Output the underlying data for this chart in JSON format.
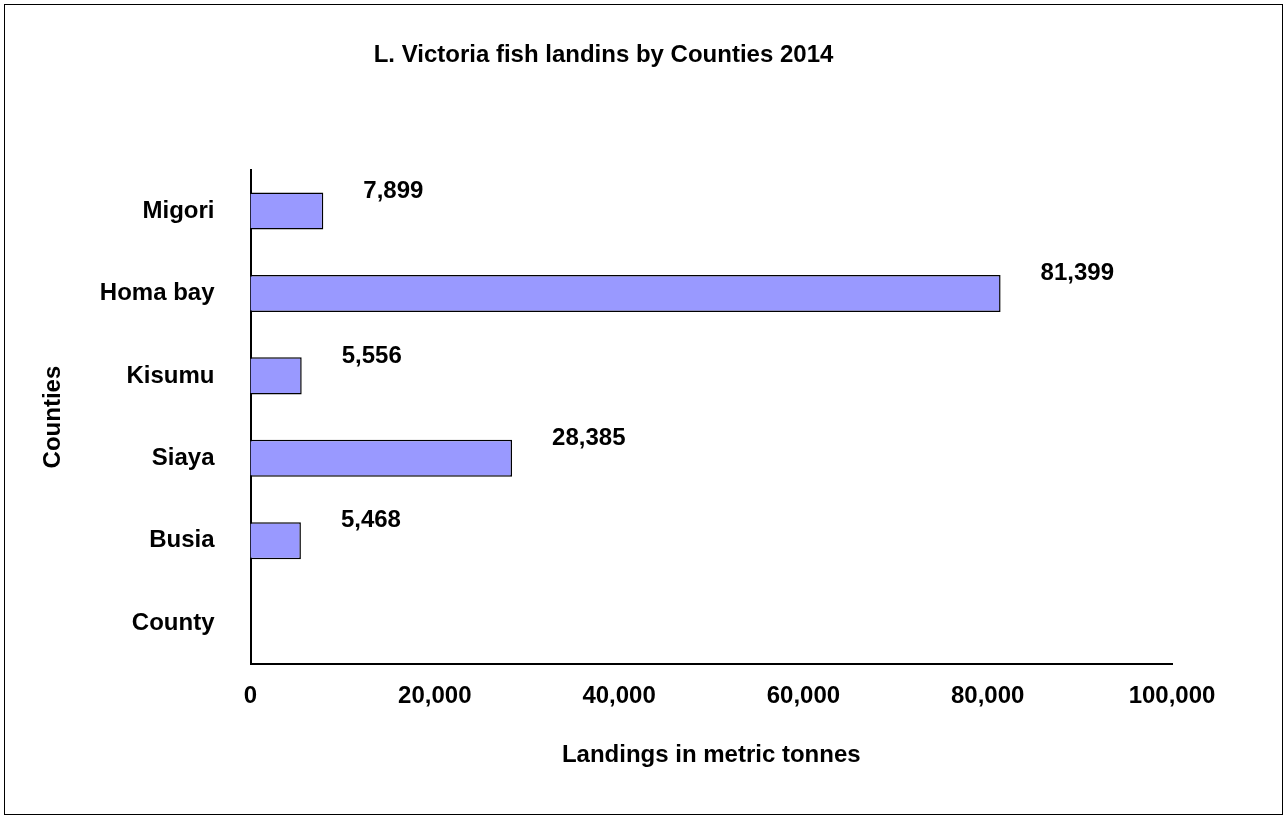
{
  "chart_data": {
    "type": "bar",
    "orientation": "horizontal",
    "title": "L. Victoria fish landins by Counties 2014",
    "xlabel": "Landings in metric tonnes",
    "ylabel": "Counties",
    "categories": [
      "Migori",
      "Homa bay",
      "Kisumu",
      "Siaya",
      "Busia",
      "County"
    ],
    "values": [
      7899,
      81399,
      5556,
      28385,
      5468,
      null
    ],
    "value_labels": [
      "7,899",
      "81,399",
      "5,556",
      "28,385",
      "5,468",
      null
    ],
    "color": "#9999ff",
    "xlim": [
      0,
      100000
    ],
    "xticks": [
      0,
      {
        "value": 20000,
        "label": "20,000"
      },
      {
        "value": 40000,
        "label": "40,000"
      },
      {
        "value": 60000,
        "label": "60,000"
      },
      {
        "value": 80000,
        "label": "80,000"
      },
      {
        "value": 100000,
        "label": "100,000"
      }
    ],
    "grid": false,
    "legend": false
  }
}
